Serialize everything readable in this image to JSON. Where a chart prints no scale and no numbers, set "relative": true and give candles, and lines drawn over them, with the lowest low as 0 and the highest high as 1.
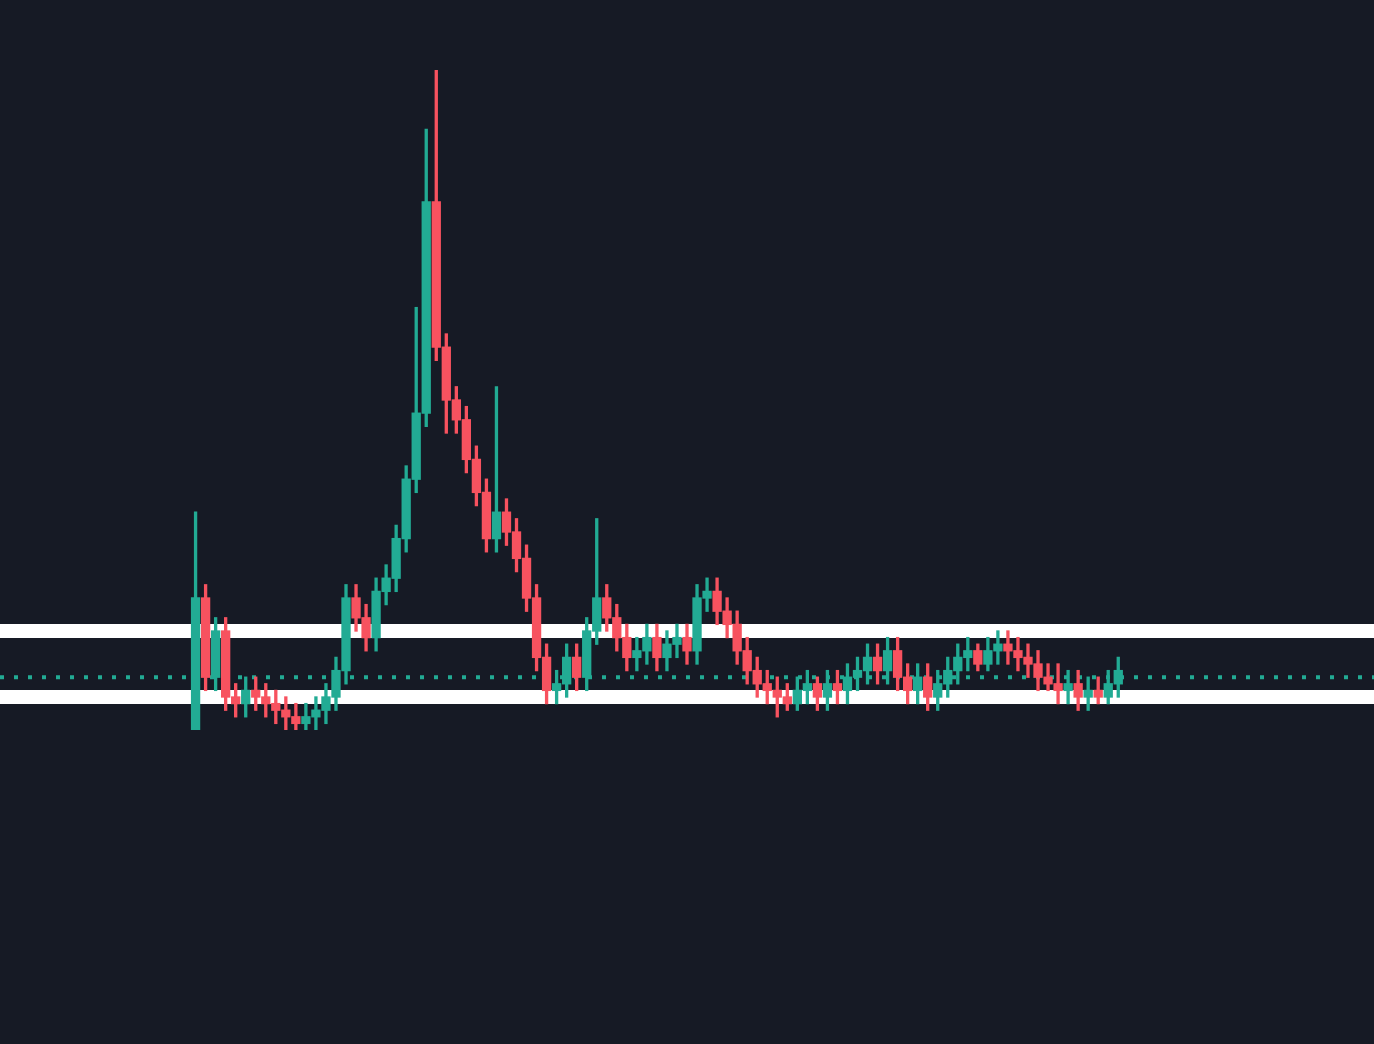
{
  "chart_data": {
    "type": "candlestick",
    "relative": true,
    "categories": [
      null,
      null,
      null,
      null,
      null,
      null,
      null,
      null,
      null,
      null,
      null,
      null,
      null,
      null,
      null,
      null,
      null,
      null,
      null,
      null,
      null,
      null,
      null,
      null,
      null,
      null,
      null,
      null,
      null,
      null,
      null,
      null,
      null,
      null,
      null,
      null,
      null,
      null,
      null,
      null,
      null,
      null,
      null,
      null,
      null,
      null,
      null,
      null,
      null,
      null,
      null,
      null,
      null,
      null,
      null,
      null,
      null,
      null,
      null,
      null,
      null,
      null,
      null,
      null,
      null,
      null,
      null,
      null,
      null,
      null,
      null,
      null,
      null,
      null,
      null,
      null,
      null,
      null,
      null,
      null,
      null,
      null,
      null,
      null,
      null,
      null,
      null,
      null,
      null,
      null,
      null,
      null,
      null,
      null,
      null,
      null,
      null,
      null,
      null,
      null,
      null,
      null,
      null,
      null,
      null,
      null,
      null,
      null,
      null,
      null,
      null,
      null,
      null,
      null,
      null,
      null,
      null,
      null,
      null,
      null,
      null,
      null,
      null,
      null,
      null,
      null,
      null,
      null,
      null,
      null,
      null,
      null,
      null,
      null,
      null,
      null,
      null
    ],
    "ohlc": [
      null,
      null,
      null,
      null,
      null,
      null,
      null,
      null,
      null,
      null,
      null,
      null,
      null,
      null,
      null,
      null,
      null,
      null,
      null,
      [
        0.0,
        0.33,
        0.0,
        0.2
      ],
      [
        0.2,
        0.22,
        0.06,
        0.08
      ],
      [
        0.08,
        0.17,
        0.06,
        0.15
      ],
      [
        0.15,
        0.17,
        0.03,
        0.05
      ],
      [
        0.05,
        0.07,
        0.02,
        0.04
      ],
      [
        0.04,
        0.08,
        0.02,
        0.06
      ],
      [
        0.06,
        0.08,
        0.03,
        0.05
      ],
      [
        0.05,
        0.07,
        0.02,
        0.04
      ],
      [
        0.04,
        0.06,
        0.01,
        0.03
      ],
      [
        0.03,
        0.05,
        0.0,
        0.02
      ],
      [
        0.02,
        0.04,
        0.0,
        0.01
      ],
      [
        0.01,
        0.04,
        0.0,
        0.02
      ],
      [
        0.02,
        0.05,
        0.0,
        0.03
      ],
      [
        0.03,
        0.07,
        0.01,
        0.05
      ],
      [
        0.05,
        0.11,
        0.03,
        0.09
      ],
      [
        0.09,
        0.22,
        0.07,
        0.2
      ],
      [
        0.2,
        0.22,
        0.15,
        0.17
      ],
      [
        0.17,
        0.19,
        0.12,
        0.14
      ],
      [
        0.14,
        0.23,
        0.12,
        0.21
      ],
      [
        0.21,
        0.25,
        0.19,
        0.23
      ],
      [
        0.23,
        0.31,
        0.21,
        0.29
      ],
      [
        0.29,
        0.4,
        0.27,
        0.38
      ],
      [
        0.38,
        0.64,
        0.36,
        0.48
      ],
      [
        0.48,
        0.91,
        0.46,
        0.8
      ],
      [
        0.8,
        1.0,
        0.56,
        0.58
      ],
      [
        0.58,
        0.6,
        0.45,
        0.5
      ],
      [
        0.5,
        0.52,
        0.45,
        0.47
      ],
      [
        0.47,
        0.49,
        0.39,
        0.41
      ],
      [
        0.41,
        0.43,
        0.34,
        0.36
      ],
      [
        0.36,
        0.38,
        0.27,
        0.29
      ],
      [
        0.29,
        0.52,
        0.27,
        0.33
      ],
      [
        0.33,
        0.35,
        0.28,
        0.3
      ],
      [
        0.3,
        0.32,
        0.24,
        0.26
      ],
      [
        0.26,
        0.28,
        0.18,
        0.2
      ],
      [
        0.2,
        0.22,
        0.09,
        0.11
      ],
      [
        0.11,
        0.13,
        0.04,
        0.06
      ],
      [
        0.06,
        0.09,
        0.04,
        0.07
      ],
      [
        0.07,
        0.13,
        0.05,
        0.11
      ],
      [
        0.11,
        0.13,
        0.06,
        0.08
      ],
      [
        0.08,
        0.17,
        0.06,
        0.15
      ],
      [
        0.15,
        0.32,
        0.13,
        0.2
      ],
      [
        0.2,
        0.22,
        0.15,
        0.17
      ],
      [
        0.17,
        0.19,
        0.12,
        0.14
      ],
      [
        0.14,
        0.16,
        0.09,
        0.11
      ],
      [
        0.11,
        0.14,
        0.09,
        0.12
      ],
      [
        0.12,
        0.16,
        0.1,
        0.14
      ],
      [
        0.14,
        0.16,
        0.09,
        0.11
      ],
      [
        0.11,
        0.15,
        0.09,
        0.13
      ],
      [
        0.13,
        0.16,
        0.11,
        0.14
      ],
      [
        0.14,
        0.16,
        0.1,
        0.12
      ],
      [
        0.12,
        0.22,
        0.1,
        0.2
      ],
      [
        0.2,
        0.23,
        0.18,
        0.21
      ],
      [
        0.21,
        0.23,
        0.16,
        0.18
      ],
      [
        0.18,
        0.2,
        0.14,
        0.16
      ],
      [
        0.16,
        0.18,
        0.1,
        0.12
      ],
      [
        0.12,
        0.14,
        0.07,
        0.09
      ],
      [
        0.09,
        0.11,
        0.05,
        0.07
      ],
      [
        0.07,
        0.09,
        0.04,
        0.06
      ],
      [
        0.06,
        0.08,
        0.02,
        0.05
      ],
      [
        0.05,
        0.07,
        0.03,
        0.04
      ],
      [
        0.04,
        0.08,
        0.03,
        0.06
      ],
      [
        0.06,
        0.09,
        0.04,
        0.07
      ],
      [
        0.07,
        0.08,
        0.03,
        0.05
      ],
      [
        0.05,
        0.09,
        0.03,
        0.07
      ],
      [
        0.07,
        0.09,
        0.04,
        0.06
      ],
      [
        0.06,
        0.1,
        0.04,
        0.08
      ],
      [
        0.08,
        0.11,
        0.06,
        0.09
      ],
      [
        0.09,
        0.13,
        0.07,
        0.11
      ],
      [
        0.11,
        0.13,
        0.07,
        0.09
      ],
      [
        0.09,
        0.14,
        0.07,
        0.12
      ],
      [
        0.12,
        0.14,
        0.06,
        0.08
      ],
      [
        0.08,
        0.1,
        0.04,
        0.06
      ],
      [
        0.06,
        0.1,
        0.04,
        0.08
      ],
      [
        0.08,
        0.1,
        0.03,
        0.05
      ],
      [
        0.05,
        0.09,
        0.03,
        0.07
      ],
      [
        0.07,
        0.11,
        0.05,
        0.09
      ],
      [
        0.09,
        0.13,
        0.07,
        0.11
      ],
      [
        0.11,
        0.14,
        0.09,
        0.12
      ],
      [
        0.12,
        0.13,
        0.09,
        0.1
      ],
      [
        0.1,
        0.14,
        0.09,
        0.12
      ],
      [
        0.12,
        0.15,
        0.1,
        0.13
      ],
      [
        0.13,
        0.15,
        0.1,
        0.12
      ],
      [
        0.12,
        0.14,
        0.09,
        0.11
      ],
      [
        0.11,
        0.13,
        0.08,
        0.1
      ],
      [
        0.1,
        0.12,
        0.06,
        0.08
      ],
      [
        0.08,
        0.1,
        0.06,
        0.07
      ],
      [
        0.07,
        0.1,
        0.04,
        0.06
      ],
      [
        0.06,
        0.09,
        0.04,
        0.07
      ],
      [
        0.07,
        0.09,
        0.03,
        0.05
      ],
      [
        0.05,
        0.08,
        0.03,
        0.06
      ],
      [
        0.06,
        0.08,
        0.04,
        0.05
      ],
      [
        0.05,
        0.09,
        0.04,
        0.07
      ],
      [
        0.07,
        0.11,
        0.05,
        0.09
      ],
      null,
      null,
      null,
      null,
      null,
      null,
      null,
      null,
      null,
      null,
      null,
      null,
      null,
      null,
      null,
      null,
      null,
      null,
      null,
      null,
      null,
      null,
      null,
      null,
      null
    ],
    "colors": [
      null,
      null,
      null,
      null,
      null,
      null,
      null,
      null,
      null,
      null,
      null,
      null,
      null,
      null,
      null,
      null,
      null,
      null,
      null,
      "#22ab94",
      "#f7525f",
      "#22ab94",
      "#f7525f",
      "#f7525f",
      "#22ab94",
      "#f7525f",
      "#f7525f",
      "#f7525f",
      "#f7525f",
      "#f7525f",
      "#22ab94",
      "#22ab94",
      "#22ab94",
      "#22ab94",
      "#22ab94",
      "#f7525f",
      "#f7525f",
      "#22ab94",
      "#22ab94",
      "#22ab94",
      "#22ab94",
      "#22ab94",
      "#22ab94",
      "#f7525f",
      "#f7525f",
      "#f7525f",
      "#f7525f",
      "#f7525f",
      "#f7525f",
      "#22ab94",
      "#f7525f",
      "#f7525f",
      "#f7525f",
      "#f7525f",
      "#f7525f",
      "#22ab94",
      "#22ab94",
      "#f7525f",
      "#22ab94",
      "#22ab94",
      "#f7525f",
      "#f7525f",
      "#f7525f",
      "#22ab94",
      "#22ab94",
      "#f7525f",
      "#22ab94",
      "#22ab94",
      "#f7525f",
      "#22ab94",
      "#22ab94",
      "#f7525f",
      "#f7525f",
      "#f7525f",
      "#f7525f",
      "#f7525f",
      "#f7525f",
      "#f7525f",
      "#f7525f",
      "#22ab94",
      "#22ab94",
      "#f7525f",
      "#22ab94",
      "#f7525f",
      "#22ab94",
      "#22ab94",
      "#22ab94",
      "#f7525f",
      "#22ab94",
      "#f7525f",
      "#f7525f",
      "#22ab94",
      "#f7525f",
      "#22ab94",
      "#22ab94",
      "#22ab94",
      "#22ab94",
      "#f7525f",
      "#22ab94",
      "#22ab94",
      "#f7525f",
      "#f7525f",
      "#f7525f",
      "#f7525f",
      "#f7525f",
      "#f7525f",
      "#22ab94",
      "#f7525f",
      "#22ab94",
      "#f7525f",
      "#22ab94",
      "#22ab94",
      null,
      null,
      null,
      null,
      null,
      null,
      null,
      null,
      null,
      null,
      null,
      null,
      null,
      null,
      null,
      null,
      null,
      null,
      null,
      null,
      null,
      null,
      null,
      null,
      null
    ],
    "ref_lines": [
      {
        "axis": "y",
        "value": 0.15,
        "color": "#ffffff",
        "line_style": "solid"
      },
      {
        "axis": "y",
        "value": 0.05,
        "color": "#ffffff",
        "line_style": "solid"
      },
      {
        "axis": "y",
        "value": 0.08,
        "color": "#22ab94",
        "line_style": "dotted"
      }
    ]
  }
}
